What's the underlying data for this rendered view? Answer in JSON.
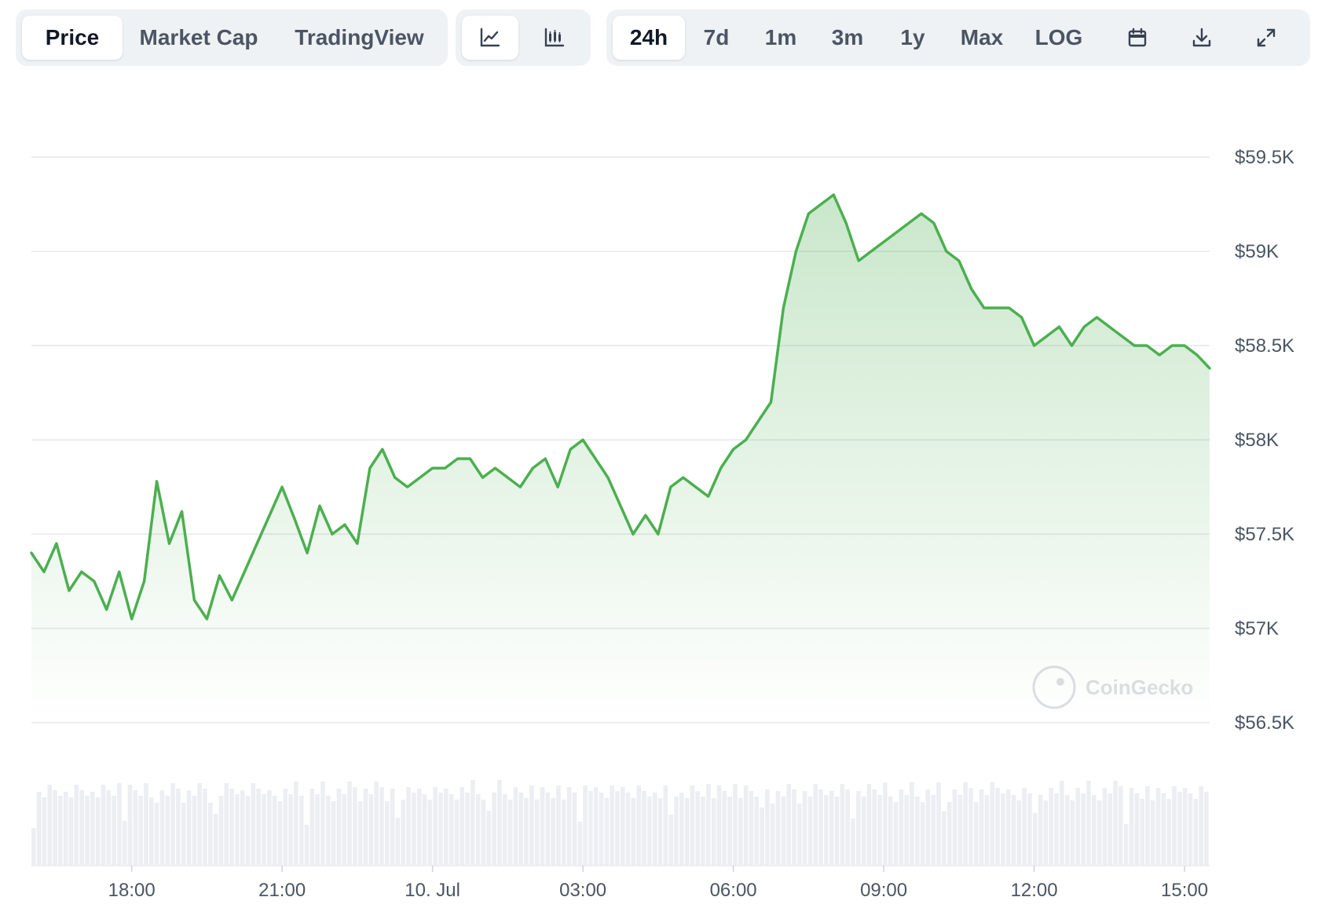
{
  "view_tabs": [
    {
      "label": "Price",
      "active": true
    },
    {
      "label": "Market Cap",
      "active": false
    },
    {
      "label": "TradingView",
      "active": false
    }
  ],
  "chart_types": [
    {
      "icon": "line-chart-icon",
      "active": true
    },
    {
      "icon": "candlestick-chart-icon",
      "active": false
    }
  ],
  "ranges": [
    {
      "label": "24h",
      "active": true
    },
    {
      "label": "7d",
      "active": false
    },
    {
      "label": "1m",
      "active": false
    },
    {
      "label": "3m",
      "active": false
    },
    {
      "label": "1y",
      "active": false
    },
    {
      "label": "Max",
      "active": false
    },
    {
      "label": "LOG",
      "active": false
    }
  ],
  "tool_icons": [
    "calendar-icon",
    "download-icon",
    "fullscreen-icon"
  ],
  "watermark": "CoinGecko",
  "colors": {
    "line": "#4caf50",
    "fill": "#4caf50",
    "volume": "#eceef2",
    "grid": "#e5e7eb"
  },
  "chart_data": {
    "type": "area",
    "title": "",
    "xlabel": "",
    "ylabel": "",
    "grid": true,
    "ylim": [
      56500,
      59500
    ],
    "xlim": [
      "2024-07-09 16:00",
      "2024-07-10 15:30"
    ],
    "y_ticks": [
      {
        "value": 59500,
        "label": "$59.5K"
      },
      {
        "value": 59000,
        "label": "$59K"
      },
      {
        "value": 58500,
        "label": "$58.5K"
      },
      {
        "value": 58000,
        "label": "$58K"
      },
      {
        "value": 57500,
        "label": "$57.5K"
      },
      {
        "value": 57000,
        "label": "$57K"
      },
      {
        "value": 56500,
        "label": "$56.5K"
      }
    ],
    "x_ticks": [
      {
        "time": "2024-07-09 18:00",
        "label": "18:00"
      },
      {
        "time": "2024-07-09 21:00",
        "label": "21:00"
      },
      {
        "time": "2024-07-10 00:00",
        "label": "10. Jul"
      },
      {
        "time": "2024-07-10 03:00",
        "label": "03:00"
      },
      {
        "time": "2024-07-10 06:00",
        "label": "06:00"
      },
      {
        "time": "2024-07-10 09:00",
        "label": "09:00"
      },
      {
        "time": "2024-07-10 12:00",
        "label": "12:00"
      },
      {
        "time": "2024-07-10 15:00",
        "label": "15:00"
      }
    ],
    "series": [
      {
        "x": [
          "2024-07-09 16:00",
          "2024-07-09 16:15",
          "2024-07-09 16:30",
          "2024-07-09 16:45",
          "2024-07-09 17:00",
          "2024-07-09 17:15",
          "2024-07-09 17:30",
          "2024-07-09 17:45",
          "2024-07-09 18:00",
          "2024-07-09 18:15",
          "2024-07-09 18:30",
          "2024-07-09 18:45",
          "2024-07-09 19:00",
          "2024-07-09 19:15",
          "2024-07-09 19:30",
          "2024-07-09 19:45",
          "2024-07-09 20:00",
          "2024-07-09 20:15",
          "2024-07-09 20:30",
          "2024-07-09 20:45",
          "2024-07-09 21:00",
          "2024-07-09 21:15",
          "2024-07-09 21:30",
          "2024-07-09 21:45",
          "2024-07-09 22:00",
          "2024-07-09 22:15",
          "2024-07-09 22:30",
          "2024-07-09 22:45",
          "2024-07-09 23:00",
          "2024-07-09 23:15",
          "2024-07-09 23:30",
          "2024-07-09 23:45",
          "2024-07-10 00:00",
          "2024-07-10 00:15",
          "2024-07-10 00:30",
          "2024-07-10 00:45",
          "2024-07-10 01:00",
          "2024-07-10 01:15",
          "2024-07-10 01:30",
          "2024-07-10 01:45",
          "2024-07-10 02:00",
          "2024-07-10 02:15",
          "2024-07-10 02:30",
          "2024-07-10 02:45",
          "2024-07-10 03:00",
          "2024-07-10 03:15",
          "2024-07-10 03:30",
          "2024-07-10 03:45",
          "2024-07-10 04:00",
          "2024-07-10 04:15",
          "2024-07-10 04:30",
          "2024-07-10 04:45",
          "2024-07-10 05:00",
          "2024-07-10 05:15",
          "2024-07-10 05:30",
          "2024-07-10 05:45",
          "2024-07-10 06:00",
          "2024-07-10 06:15",
          "2024-07-10 06:30",
          "2024-07-10 06:45",
          "2024-07-10 07:00",
          "2024-07-10 07:15",
          "2024-07-10 07:30",
          "2024-07-10 07:45",
          "2024-07-10 08:00",
          "2024-07-10 08:15",
          "2024-07-10 08:30",
          "2024-07-10 08:45",
          "2024-07-10 09:00",
          "2024-07-10 09:15",
          "2024-07-10 09:30",
          "2024-07-10 09:45",
          "2024-07-10 10:00",
          "2024-07-10 10:15",
          "2024-07-10 10:30",
          "2024-07-10 10:45",
          "2024-07-10 11:00",
          "2024-07-10 11:15",
          "2024-07-10 11:30",
          "2024-07-10 11:45",
          "2024-07-10 12:00",
          "2024-07-10 12:15",
          "2024-07-10 12:30",
          "2024-07-10 12:45",
          "2024-07-10 13:00",
          "2024-07-10 13:15",
          "2024-07-10 13:30",
          "2024-07-10 13:45",
          "2024-07-10 14:00",
          "2024-07-10 14:15",
          "2024-07-10 14:30",
          "2024-07-10 14:45",
          "2024-07-10 15:00",
          "2024-07-10 15:15",
          "2024-07-10 15:30"
        ],
        "values": [
          57400,
          57300,
          57450,
          57200,
          57300,
          57250,
          57100,
          57300,
          57050,
          57250,
          57780,
          57450,
          57620,
          57150,
          57050,
          57280,
          57150,
          57300,
          57450,
          57600,
          57750,
          57580,
          57400,
          57650,
          57500,
          57550,
          57450,
          57850,
          57950,
          57800,
          57750,
          57800,
          57850,
          57850,
          57900,
          57900,
          57800,
          57850,
          57800,
          57750,
          57850,
          57900,
          57750,
          57950,
          58000,
          57900,
          57800,
          57650,
          57500,
          57600,
          57500,
          57750,
          57800,
          57750,
          57700,
          57850,
          57950,
          58000,
          58100,
          58200,
          58700,
          59000,
          59200,
          59250,
          59300,
          59150,
          58950,
          59000,
          59050,
          59100,
          59150,
          59200,
          59150,
          59000,
          58950,
          58800,
          58700,
          58700,
          58700,
          58650,
          58500,
          58550,
          58600,
          58500,
          58600,
          58650,
          58600,
          58550,
          58500,
          58500,
          58450,
          58500,
          58500,
          58450,
          58380
        ]
      }
    ]
  }
}
